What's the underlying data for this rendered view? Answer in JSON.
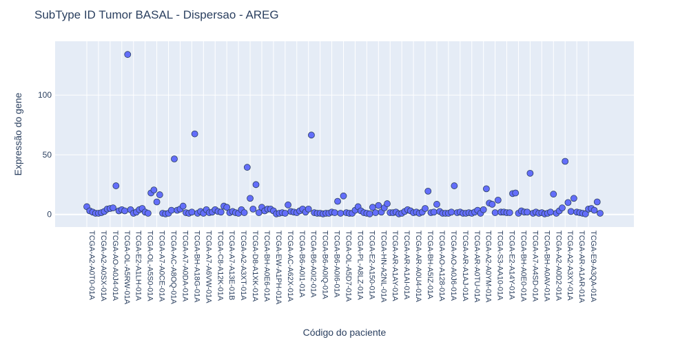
{
  "chart_data": {
    "type": "scatter",
    "title": "SubType ID Tumor BASAL - Dispersao - AREG",
    "xlabel": "Código do paciente",
    "ylabel": "Expressão do gene",
    "ylim": [
      -10,
      140
    ],
    "yticks": [
      0,
      50,
      100
    ],
    "grid": true,
    "tick_labels": [
      "TCGA-A2-A0T0-01A",
      "TCGA-A2-A0SX-01A",
      "TCGA-AO-A0J4-01A",
      "TCGA-OL-A5RW-01A",
      "TCGA-E2-A1LH-01A",
      "TCGA-OL-A5S0-01A",
      "TCGA-A7-A0CE-01A",
      "TCGA-AC-A8OQ-01A",
      "TCGA-A7-A0DA-01A",
      "TCGA-BH-A18G-01A",
      "TCGA-A7-A6VW-01A",
      "TCGA-C8-A12K-01A",
      "TCGA-A7-A13E-01B",
      "TCGA-A2-A3XT-01A",
      "TCGA-D8-A1XK-01A",
      "TCGA-BH-A0E6-01A",
      "TCGA-EW-A1PH-01A",
      "TCGA-AC-A62X-01A",
      "TCGA-B6-A0I1-01A",
      "TCGA-B6-A0I2-01A",
      "TCGA-B6-A0IQ-01A",
      "TCGA-B6-A0I6-01A",
      "TCGA-OL-A5D7-01A",
      "TCGA-PL-A8LZ-01A",
      "TCGA-E2-A150-01A",
      "TCGA-HN-A2NL-01A",
      "TCGA-AR-A1AY-01A",
      "TCGA-AR-A1AI-01A",
      "TCGA-AR-A0U4-01A",
      "TCGA-BH-A5IZ-01A",
      "TCGA-AO-A128-01A",
      "TCGA-AO-A0J6-01A",
      "TCGA-AR-A1AJ-01A",
      "TCGA-AR-A0TU-01A",
      "TCGA-A2-A0YM-01A",
      "TCGA-S3-AA10-01A",
      "TCGA-E2-A14Y-01A",
      "TCGA-BH-A0E0-01A",
      "TCGA-A7-A4SD-01A",
      "TCGA-BH-A0AV-01A",
      "TCGA-A2-A0D2-01A",
      "TCGA-A2-A3XY-01A",
      "TCGA-AR-A1AR-01A",
      "TCGA-E9-A3QA-01A"
    ],
    "y": [
      6.5,
      3,
      2,
      1,
      1,
      1.5,
      2.5,
      4.5,
      5,
      5.5,
      24,
      3,
      4,
      3,
      134,
      4,
      1,
      2,
      4,
      5,
      2,
      1,
      18,
      20.5,
      10.5,
      16.5,
      1,
      0.5,
      1,
      3.5,
      46.5,
      3.5,
      4.5,
      7,
      1.5,
      1,
      2,
      67.5,
      1,
      2.5,
      1,
      4,
      1.5,
      2,
      4,
      2.5,
      2,
      7,
      6,
      1.5,
      2.5,
      1.5,
      1,
      4,
      1.5,
      39.5,
      13.5,
      4.5,
      25,
      1.5,
      6,
      3,
      4.5,
      4.5,
      3,
      0.5,
      1,
      1.5,
      1,
      8,
      2.5,
      2,
      1.5,
      3,
      4.5,
      2,
      4.5,
      66.5,
      1.5,
      1,
      1,
      0.5,
      1,
      1,
      2,
      1.5,
      11,
      1,
      15.5,
      1.5,
      1,
      1,
      3.5,
      6.5,
      3,
      1.5,
      1,
      0.5,
      6,
      1.5,
      7.5,
      2,
      5.5,
      9,
      1.5,
      1.5,
      2,
      0.5,
      1,
      2.5,
      4,
      3,
      1.5,
      2,
      1,
      2,
      5,
      19.5,
      1.5,
      2,
      8.5,
      2.5,
      1,
      1,
      1,
      2,
      24,
      1.5,
      2,
      1,
      1,
      1.5,
      1,
      2,
      3.5,
      1,
      4,
      21.5,
      9.5,
      8.5,
      1.5,
      12,
      2,
      2,
      1.5,
      1.5,
      17.5,
      18,
      1,
      3,
      2,
      2,
      34.5,
      1,
      2,
      1,
      1.5,
      0.5,
      1,
      2,
      17,
      1,
      3,
      5.5,
      44.5,
      10,
      2.5,
      13.5,
      2,
      1.5,
      1,
      0.5,
      4.5,
      5,
      3.5,
      10.5,
      1
    ]
  }
}
